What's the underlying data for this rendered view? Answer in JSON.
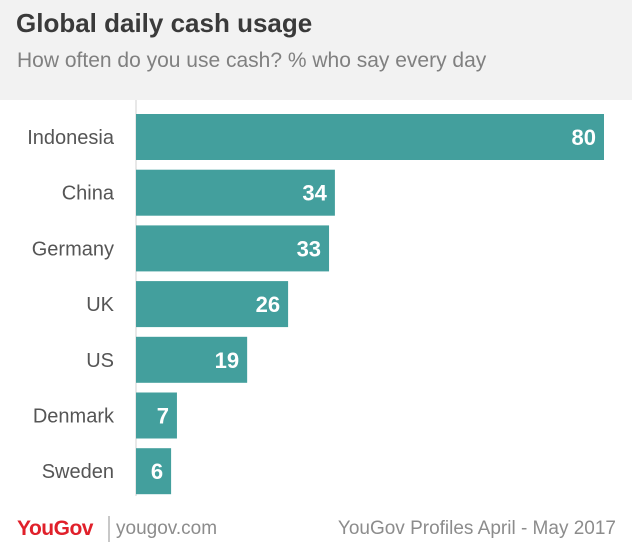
{
  "header": {
    "title": "Global daily cash usage",
    "subtitle": "How often do you use cash? % who say every day"
  },
  "footer": {
    "logo": "YouGov",
    "site": "yougov.com",
    "source": "YouGov Profiles April - May 2017"
  },
  "colors": {
    "bar": "#439f9d",
    "value_label": "#ffffff",
    "category_label": "#555555",
    "header_bg": "#f2f2f2",
    "logo": "#e0202a"
  },
  "chart_data": {
    "type": "bar",
    "orientation": "horizontal",
    "title": "Global daily cash usage",
    "subtitle": "How often do you use cash? % who say every day",
    "categories": [
      "Indonesia",
      "China",
      "Germany",
      "UK",
      "US",
      "Denmark",
      "Sweden"
    ],
    "values": [
      80,
      34,
      33,
      26,
      19,
      7,
      6
    ],
    "xlim": [
      0,
      80
    ],
    "grid": false,
    "legend": "none"
  }
}
